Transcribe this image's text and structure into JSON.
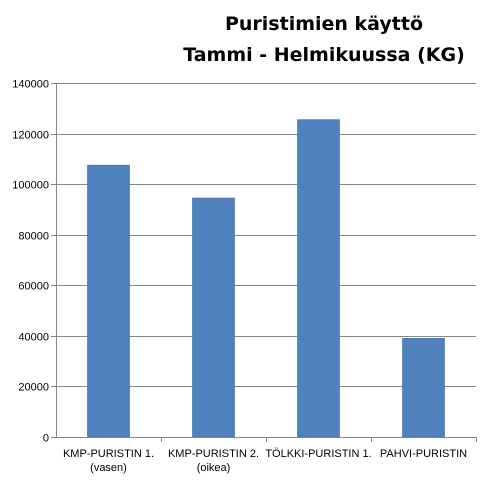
{
  "chart_data": {
    "type": "bar",
    "title": "Puristimien käyttö",
    "subtitle": "Tammi - Helmikuussa (KG)",
    "categories": [
      [
        "KMP-PURISTIN 1.",
        "(vasen)"
      ],
      [
        "KMP-PURISTIN 2.",
        "(oikea)"
      ],
      [
        "TÖLKKI-PURISTIN 1."
      ],
      [
        "PAHVI-PURISTIN"
      ]
    ],
    "values": [
      107500,
      94500,
      125500,
      39000
    ],
    "ylim": [
      0,
      140000
    ],
    "yticks": [
      0,
      20000,
      40000,
      60000,
      80000,
      100000,
      120000,
      140000
    ],
    "xlabel": "",
    "ylabel": "",
    "grid": true,
    "legend": "none",
    "colors": {
      "bar": "#4F81BD",
      "bar_edge": "#3C6A9E",
      "grid": "#878787",
      "axis": "#878787"
    }
  }
}
